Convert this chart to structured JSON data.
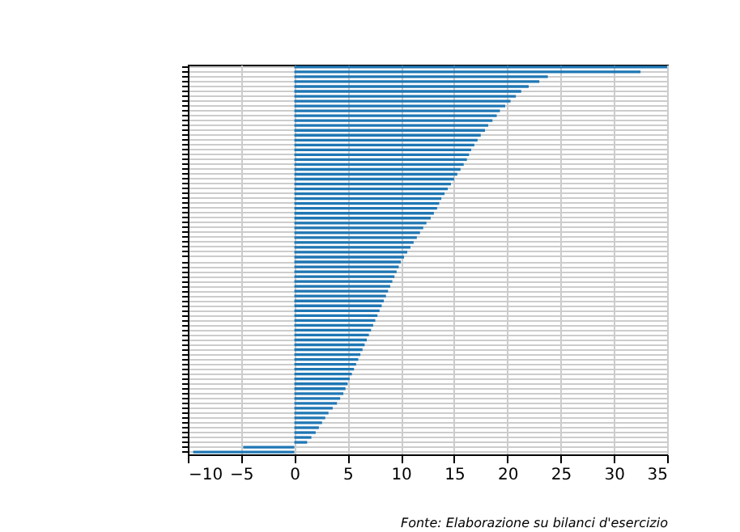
{
  "chart_data": {
    "type": "bar",
    "orientation": "horizontal",
    "tick_labels": "x",
    "grid": true,
    "categories": [
      null,
      null,
      null,
      null,
      null,
      null,
      null,
      null,
      null,
      null,
      null,
      null,
      null,
      null,
      null,
      null,
      null,
      null,
      null,
      null,
      null,
      null,
      null,
      null,
      null,
      null,
      null,
      null,
      null,
      null,
      null,
      null,
      null,
      null,
      null,
      null,
      null,
      null,
      null,
      null,
      null,
      null,
      null,
      null,
      null,
      null,
      null,
      null,
      null,
      null,
      null,
      null,
      null,
      null,
      null,
      null,
      null,
      null,
      null,
      null,
      null,
      null,
      null,
      null,
      null,
      null,
      null,
      null,
      null,
      null,
      null,
      null,
      null,
      null,
      null,
      null,
      null,
      null,
      null,
      null
    ],
    "values": [
      35,
      32.5,
      23.8,
      23,
      22,
      21.3,
      20.8,
      20.3,
      19.8,
      19.3,
      19,
      18.6,
      18.2,
      17.9,
      17.5,
      17.2,
      16.9,
      16.6,
      16.4,
      16.2,
      15.9,
      15.6,
      15.3,
      15,
      14.7,
      14.4,
      14.1,
      13.8,
      13.6,
      13.4,
      13.1,
      12.8,
      12.4,
      12.1,
      11.8,
      11.5,
      11.2,
      10.9,
      10.6,
      10.3,
      10,
      9.8,
      9.6,
      9.4,
      9.2,
      9,
      8.8,
      8.6,
      8.4,
      8.2,
      8,
      7.8,
      7.6,
      7.4,
      7.2,
      7,
      6.8,
      6.6,
      6.4,
      6.2,
      6,
      5.8,
      5.6,
      5.4,
      5.2,
      5,
      4.8,
      4.6,
      4.3,
      4,
      3.6,
      3.2,
      2.9,
      2.6,
      2.3,
      2,
      1.6,
      1.2,
      -4.8,
      -9.5
    ],
    "color": "#1f77b4",
    "xlim": [
      -10,
      35
    ],
    "xticks": [
      -10,
      -5,
      0,
      5,
      10,
      15,
      20,
      25,
      30,
      35
    ],
    "annotations": [
      "Fonte: Elaborazione su bilanci d'esercizio"
    ]
  }
}
